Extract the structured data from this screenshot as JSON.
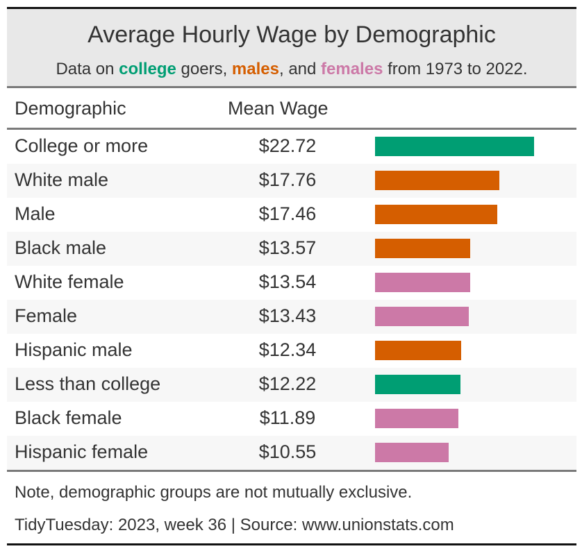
{
  "header": {
    "title": "Average Hourly Wage by Demographic",
    "subtitle": {
      "prefix": "Data on ",
      "college": "college",
      "mid1": " goers, ",
      "males": "males",
      "mid2": ", and ",
      "females": "females",
      "suffix": " from 1973 to 2022."
    }
  },
  "columns": {
    "demographic": "Demographic",
    "mean_wage": "Mean Wage"
  },
  "colors": {
    "college": "#009e73",
    "male": "#d55e00",
    "female": "#cc79a7"
  },
  "chart_data": {
    "type": "table",
    "title": "Average Hourly Wage by Demographic",
    "columns": [
      "Demographic",
      "Mean Wage"
    ],
    "rows": [
      {
        "demographic": "College or more",
        "mean_wage": 22.72,
        "display": "$22.72",
        "group": "college"
      },
      {
        "demographic": "White male",
        "mean_wage": 17.76,
        "display": "$17.76",
        "group": "male"
      },
      {
        "demographic": "Male",
        "mean_wage": 17.46,
        "display": "$17.46",
        "group": "male"
      },
      {
        "demographic": "Black male",
        "mean_wage": 13.57,
        "display": "$13.57",
        "group": "male"
      },
      {
        "demographic": "White female",
        "mean_wage": 13.54,
        "display": "$13.54",
        "group": "female"
      },
      {
        "demographic": "Female",
        "mean_wage": 13.43,
        "display": "$13.43",
        "group": "female"
      },
      {
        "demographic": "Hispanic male",
        "mean_wage": 12.34,
        "display": "$12.34",
        "group": "male"
      },
      {
        "demographic": "Less than college",
        "mean_wage": 12.22,
        "display": "$12.22",
        "group": "college"
      },
      {
        "demographic": "Black female",
        "mean_wage": 11.89,
        "display": "$11.89",
        "group": "female"
      },
      {
        "demographic": "Hispanic female",
        "mean_wage": 10.55,
        "display": "$10.55",
        "group": "female"
      }
    ]
  },
  "footer": {
    "note": "Note, demographic groups are not mutually exclusive.",
    "source": "TidyTuesday: 2023, week 36 | Source: www.unionstats.com"
  }
}
